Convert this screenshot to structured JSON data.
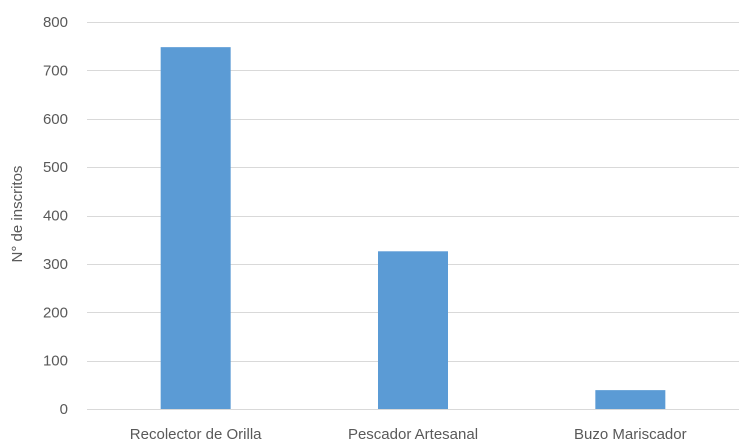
{
  "chart_data": {
    "type": "bar",
    "title": "",
    "xlabel": "",
    "ylabel": "N° de inscritos",
    "categories": [
      "Recolector de Orilla",
      "Pescador Artesanal",
      "Buzo Mariscador"
    ],
    "values": [
      748,
      326,
      39
    ],
    "ylim": [
      0,
      800
    ],
    "yticks": [
      0,
      100,
      200,
      300,
      400,
      500,
      600,
      700,
      800
    ],
    "grid": true,
    "legend": "none",
    "bar_color": "#5b9bd5"
  }
}
